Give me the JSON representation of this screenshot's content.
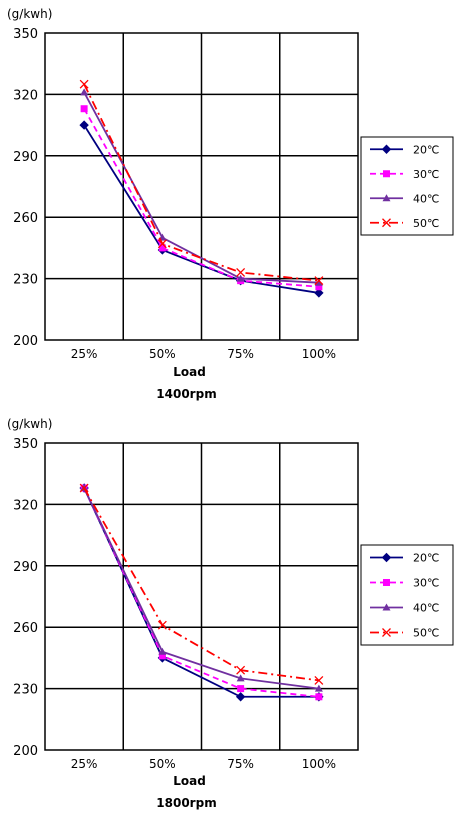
{
  "chart_data": [
    {
      "type": "line",
      "unit_label": "(g/kwh)",
      "categories": [
        "25%",
        "50%",
        "75%",
        "100%"
      ],
      "xlabel": "Load",
      "caption": "1400rpm",
      "ylim": [
        200,
        350
      ],
      "yticks": [
        200,
        230,
        260,
        290,
        320,
        350
      ],
      "grid": true,
      "legend_position": "right",
      "series": [
        {
          "name": "20℃",
          "values": [
            305,
            244,
            229,
            223
          ],
          "color": "#000080",
          "marker": "diamond",
          "dash": "solid"
        },
        {
          "name": "30℃",
          "values": [
            313,
            245,
            229,
            226
          ],
          "color": "#FF00FF",
          "marker": "square",
          "dash": "dashed"
        },
        {
          "name": "40℃",
          "values": [
            321,
            250,
            230,
            228
          ],
          "color": "#7030A0",
          "marker": "triangle",
          "dash": "solid"
        },
        {
          "name": "50℃",
          "values": [
            325,
            247,
            233,
            229
          ],
          "color": "#FF0000",
          "marker": "x",
          "dash": "dashdot"
        }
      ]
    },
    {
      "type": "line",
      "unit_label": "(g/kwh)",
      "categories": [
        "25%",
        "50%",
        "75%",
        "100%"
      ],
      "xlabel": "Load",
      "caption": "1800rpm",
      "ylim": [
        200,
        350
      ],
      "yticks": [
        200,
        230,
        260,
        290,
        320,
        350
      ],
      "grid": true,
      "legend_position": "right",
      "series": [
        {
          "name": "20℃",
          "values": [
            328,
            245,
            226,
            226
          ],
          "color": "#000080",
          "marker": "diamond",
          "dash": "solid"
        },
        {
          "name": "30℃",
          "values": [
            328,
            246,
            230,
            226
          ],
          "color": "#FF00FF",
          "marker": "square",
          "dash": "dashed"
        },
        {
          "name": "40℃",
          "values": [
            328,
            248,
            235,
            230
          ],
          "color": "#7030A0",
          "marker": "triangle",
          "dash": "solid"
        },
        {
          "name": "50℃",
          "values": [
            328,
            261,
            239,
            234
          ],
          "color": "#FF0000",
          "marker": "x",
          "dash": "dashdot"
        }
      ]
    }
  ]
}
